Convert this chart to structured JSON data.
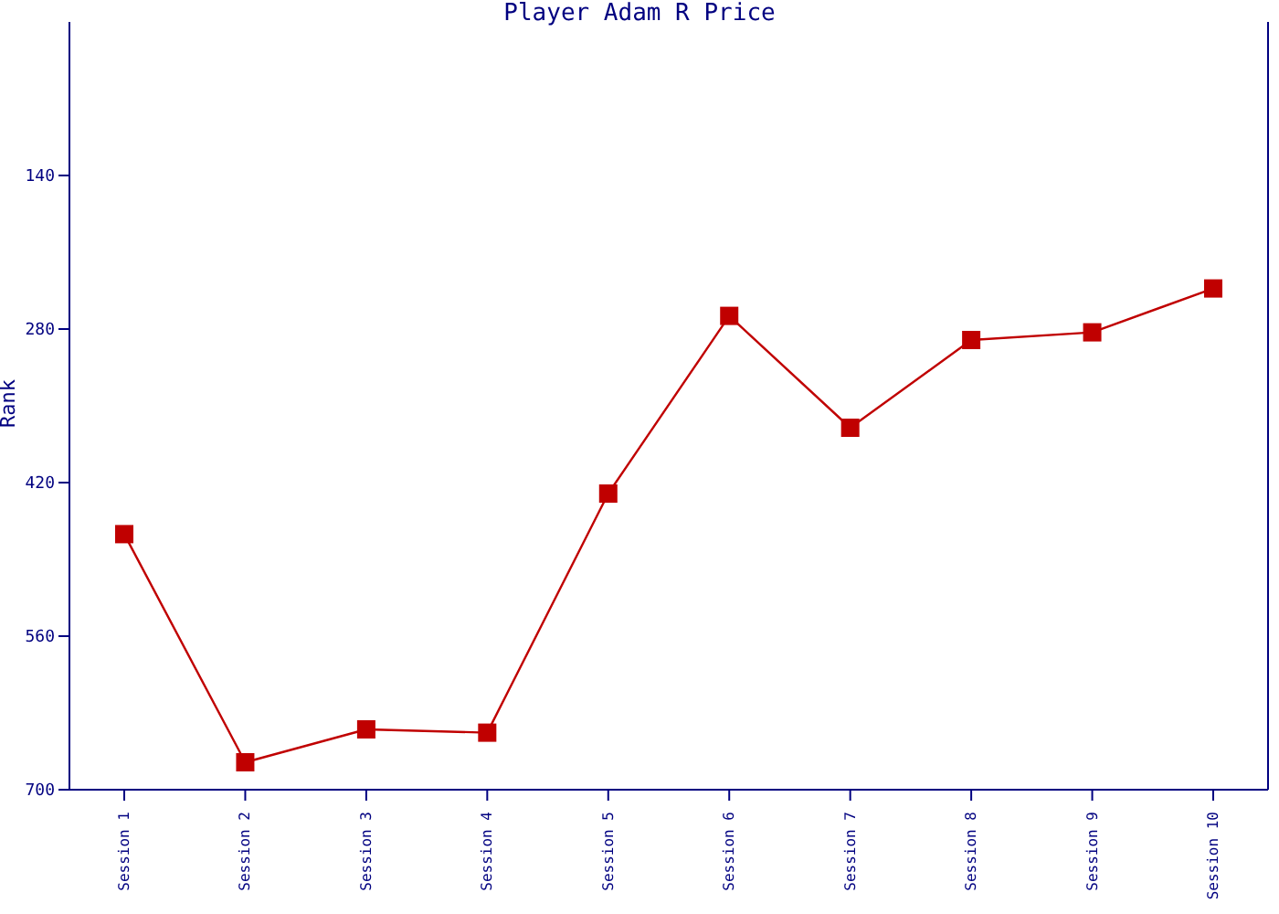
{
  "chart_data": {
    "type": "line",
    "title": "Player Adam R Price",
    "ylabel": "Rank",
    "categories": [
      "Session 1",
      "Session 2",
      "Session 3",
      "Session 4",
      "Session 5",
      "Session 6",
      "Session 7",
      "Session 8",
      "Session 9",
      "Session 10"
    ],
    "series": [
      {
        "color": "#c00000",
        "values": [
          467,
          675,
          645,
          648,
          430,
          268,
          370,
          290,
          283,
          243
        ]
      }
    ],
    "ylim": [
      700,
      0
    ],
    "yticks": [
      140,
      280,
      420,
      560,
      700
    ],
    "grid": false,
    "legend": false,
    "marker": "square",
    "line_style": "solid"
  }
}
